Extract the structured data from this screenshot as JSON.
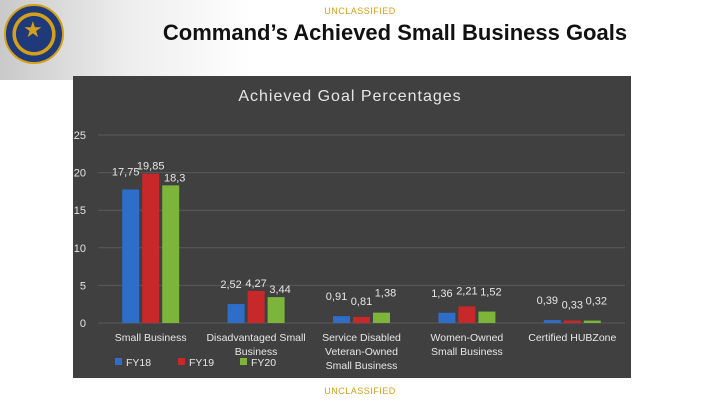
{
  "banner_top": "UNCLASSIFIED",
  "banner_bottom": "UNCLASSIFIED",
  "slide_title": "Command’s Achieved Small Business Goals",
  "colors": {
    "FY18": "#2e6ec9",
    "FY19": "#c8282a",
    "FY20": "#7db53a"
  },
  "chart_data": {
    "type": "bar",
    "title": "Achieved Goal Percentages",
    "categories": [
      "Small Business",
      "Disadvantaged Small Business",
      "Service Disabled Veteran-Owned Small Business",
      "Women-Owned Small Business",
      "Certified HUBZone"
    ],
    "category_lines": [
      [
        "Small Business"
      ],
      [
        "Disadvantaged Small",
        "Business"
      ],
      [
        "Service Disabled",
        "Veteran-Owned",
        "Small Business"
      ],
      [
        "Women-Owned",
        "Small Business"
      ],
      [
        "Certified HUBZone"
      ]
    ],
    "series": [
      {
        "name": "FY18",
        "values": [
          17.75,
          2.52,
          0.91,
          1.36,
          0.39
        ],
        "labels": [
          "17,75",
          "2,52",
          "0,91",
          "1,36",
          "0,39"
        ]
      },
      {
        "name": "FY19",
        "values": [
          19.85,
          4.27,
          0.81,
          2.21,
          0.33
        ],
        "labels": [
          "19,85",
          "4,27",
          "0,81",
          "2,21",
          "0,33"
        ]
      },
      {
        "name": "FY20",
        "values": [
          18.3,
          3.44,
          1.38,
          1.52,
          0.32
        ],
        "labels": [
          "18,3",
          "3,44",
          "1,38",
          "1,52",
          "0,32"
        ]
      }
    ],
    "ylim": [
      0,
      25
    ],
    "yticks": [
      0,
      5,
      10,
      15,
      20,
      25
    ],
    "legend": "bottom-left",
    "grid": true
  }
}
